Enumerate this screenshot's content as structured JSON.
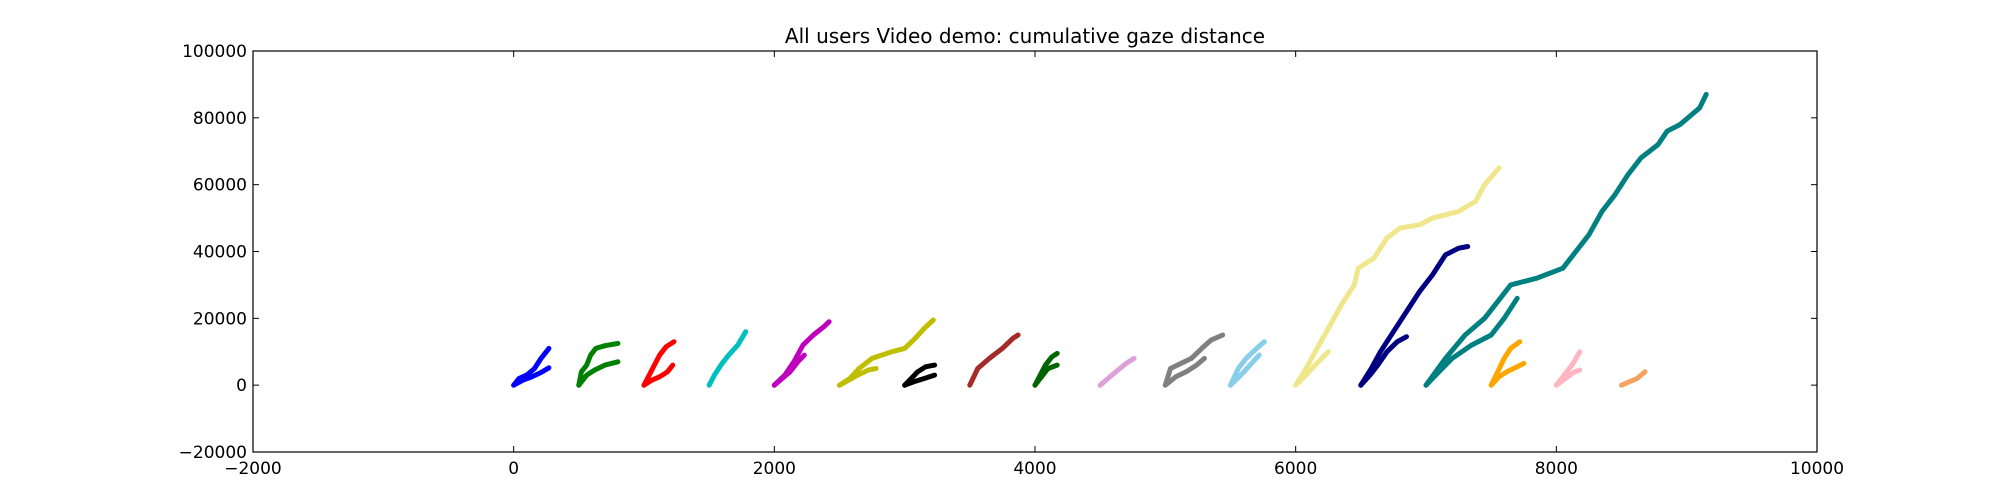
{
  "chart_data": {
    "type": "line",
    "title": "All users Video demo: cumulative gaze distance",
    "xlabel": "",
    "ylabel": "",
    "xlim": [
      -2000,
      10000
    ],
    "ylim": [
      -20000,
      100000
    ],
    "grid": false,
    "x_ticks": [
      -2000,
      0,
      2000,
      4000,
      6000,
      8000,
      10000
    ],
    "y_ticks": [
      -20000,
      0,
      20000,
      40000,
      60000,
      80000,
      100000
    ],
    "x_tick_labels": [
      "−2000",
      "0",
      "2000",
      "4000",
      "6000",
      "8000",
      "10000"
    ],
    "y_tick_labels": [
      "−20000",
      "0",
      "20000",
      "40000",
      "60000",
      "80000",
      "100000"
    ],
    "series": [
      {
        "color": "#0000ff",
        "points": [
          [
            0,
            0
          ],
          [
            40,
            2000
          ],
          [
            100,
            3000
          ],
          [
            160,
            5000
          ],
          [
            210,
            8000
          ],
          [
            270,
            11000
          ]
        ]
      },
      {
        "color": "#0000ff",
        "points": [
          [
            0,
            0
          ],
          [
            70,
            1500
          ],
          [
            140,
            2500
          ],
          [
            210,
            3800
          ],
          [
            270,
            5200
          ]
        ]
      },
      {
        "color": "#008000",
        "points": [
          [
            500,
            0
          ],
          [
            520,
            4000
          ],
          [
            560,
            6000
          ],
          [
            590,
            9000
          ],
          [
            630,
            11000
          ],
          [
            700,
            11800
          ],
          [
            800,
            12500
          ]
        ]
      },
      {
        "color": "#008000",
        "points": [
          [
            500,
            0
          ],
          [
            560,
            3000
          ],
          [
            620,
            4500
          ],
          [
            700,
            6000
          ],
          [
            800,
            7000
          ]
        ]
      },
      {
        "color": "#ff0000",
        "points": [
          [
            1000,
            0
          ],
          [
            1040,
            3000
          ],
          [
            1080,
            6000
          ],
          [
            1120,
            9000
          ],
          [
            1170,
            11500
          ],
          [
            1230,
            13000
          ]
        ]
      },
      {
        "color": "#ff0000",
        "points": [
          [
            1000,
            0
          ],
          [
            1060,
            1500
          ],
          [
            1120,
            2500
          ],
          [
            1180,
            4000
          ],
          [
            1220,
            6000
          ]
        ]
      },
      {
        "color": "#00bfbf",
        "points": [
          [
            1500,
            0
          ],
          [
            1540,
            3000
          ],
          [
            1590,
            6000
          ],
          [
            1650,
            9000
          ],
          [
            1720,
            12000
          ],
          [
            1780,
            16000
          ]
        ]
      },
      {
        "color": "#bf00bf",
        "points": [
          [
            2000,
            0
          ],
          [
            2080,
            3000
          ],
          [
            2150,
            7000
          ],
          [
            2220,
            12000
          ],
          [
            2300,
            15000
          ],
          [
            2380,
            17500
          ],
          [
            2420,
            19000
          ]
        ]
      },
      {
        "color": "#bf00bf",
        "points": [
          [
            2000,
            0
          ],
          [
            2060,
            2000
          ],
          [
            2120,
            4000
          ],
          [
            2180,
            7000
          ],
          [
            2230,
            9000
          ]
        ]
      },
      {
        "color": "#bfbf00",
        "points": [
          [
            2500,
            0
          ],
          [
            2580,
            2000
          ],
          [
            2650,
            5000
          ],
          [
            2750,
            8000
          ],
          [
            2900,
            10000
          ],
          [
            3000,
            11000
          ],
          [
            3080,
            14000
          ],
          [
            3150,
            17000
          ],
          [
            3220,
            19500
          ]
        ]
      },
      {
        "color": "#bfbf00",
        "points": [
          [
            2500,
            0
          ],
          [
            2570,
            1500
          ],
          [
            2640,
            3000
          ],
          [
            2720,
            4500
          ],
          [
            2780,
            5000
          ]
        ]
      },
      {
        "color": "#000000",
        "points": [
          [
            3000,
            0
          ],
          [
            3050,
            2000
          ],
          [
            3100,
            4000
          ],
          [
            3160,
            5500
          ],
          [
            3230,
            6000
          ]
        ]
      },
      {
        "color": "#000000",
        "points": [
          [
            3000,
            0
          ],
          [
            3070,
            1000
          ],
          [
            3150,
            2000
          ],
          [
            3230,
            3000
          ]
        ]
      },
      {
        "color": "#a52a2a",
        "points": [
          [
            3500,
            0
          ],
          [
            3560,
            5000
          ],
          [
            3650,
            8000
          ],
          [
            3750,
            11000
          ],
          [
            3830,
            14000
          ],
          [
            3870,
            15000
          ]
        ]
      },
      {
        "color": "#006400",
        "points": [
          [
            4000,
            0
          ],
          [
            4040,
            3000
          ],
          [
            4080,
            6000
          ],
          [
            4130,
            8500
          ],
          [
            4170,
            9500
          ]
        ]
      },
      {
        "color": "#006400",
        "points": [
          [
            4000,
            0
          ],
          [
            4050,
            2500
          ],
          [
            4100,
            5000
          ],
          [
            4170,
            6000
          ]
        ]
      },
      {
        "color": "#dda0dd",
        "points": [
          [
            4500,
            0
          ],
          [
            4560,
            2000
          ],
          [
            4620,
            4000
          ],
          [
            4700,
            6500
          ],
          [
            4760,
            8000
          ]
        ]
      },
      {
        "color": "#808080",
        "points": [
          [
            5000,
            0
          ],
          [
            5040,
            5000
          ],
          [
            5120,
            6500
          ],
          [
            5200,
            8000
          ],
          [
            5280,
            11000
          ],
          [
            5350,
            13500
          ],
          [
            5440,
            15000
          ]
        ]
      },
      {
        "color": "#808080",
        "points": [
          [
            5000,
            0
          ],
          [
            5080,
            2500
          ],
          [
            5160,
            4000
          ],
          [
            5240,
            6000
          ],
          [
            5300,
            8000
          ]
        ]
      },
      {
        "color": "#87ceeb",
        "points": [
          [
            5500,
            0
          ],
          [
            5560,
            5000
          ],
          [
            5620,
            8000
          ],
          [
            5700,
            11000
          ],
          [
            5760,
            13000
          ]
        ]
      },
      {
        "color": "#87ceeb",
        "points": [
          [
            5500,
            0
          ],
          [
            5580,
            3000
          ],
          [
            5650,
            6000
          ],
          [
            5720,
            9000
          ]
        ]
      },
      {
        "color": "#f0e68c",
        "points": [
          [
            6000,
            0
          ],
          [
            6080,
            5000
          ],
          [
            6150,
            10000
          ],
          [
            6250,
            17000
          ],
          [
            6350,
            24000
          ],
          [
            6450,
            30000
          ],
          [
            6480,
            35000
          ],
          [
            6600,
            38000
          ],
          [
            6700,
            44000
          ],
          [
            6800,
            47000
          ],
          [
            6950,
            48000
          ],
          [
            7050,
            50000
          ],
          [
            7250,
            52000
          ],
          [
            7380,
            55000
          ],
          [
            7450,
            60000
          ],
          [
            7560,
            65000
          ]
        ]
      },
      {
        "color": "#f0e68c",
        "points": [
          [
            6000,
            0
          ],
          [
            6080,
            3000
          ],
          [
            6150,
            6000
          ],
          [
            6250,
            10000
          ]
        ]
      },
      {
        "color": "#000080",
        "points": [
          [
            6500,
            0
          ],
          [
            6580,
            5000
          ],
          [
            6650,
            10000
          ],
          [
            6750,
            16000
          ],
          [
            6850,
            22000
          ],
          [
            6950,
            28000
          ],
          [
            7050,
            33000
          ],
          [
            7150,
            39000
          ],
          [
            7250,
            41000
          ],
          [
            7320,
            41500
          ]
        ]
      },
      {
        "color": "#000080",
        "points": [
          [
            6500,
            0
          ],
          [
            6570,
            3000
          ],
          [
            6630,
            6000
          ],
          [
            6700,
            10000
          ],
          [
            6780,
            13000
          ],
          [
            6850,
            14500
          ]
        ]
      },
      {
        "color": "#008080",
        "points": [
          [
            7000,
            0
          ],
          [
            7150,
            8000
          ],
          [
            7300,
            15000
          ],
          [
            7450,
            20000
          ],
          [
            7550,
            25000
          ],
          [
            7650,
            30000
          ],
          [
            7850,
            32000
          ],
          [
            8050,
            35000
          ],
          [
            8150,
            40000
          ],
          [
            8250,
            45000
          ],
          [
            8350,
            52000
          ],
          [
            8450,
            57000
          ],
          [
            8550,
            63000
          ],
          [
            8650,
            68000
          ],
          [
            8780,
            72000
          ],
          [
            8850,
            76000
          ],
          [
            8950,
            78000
          ],
          [
            9100,
            83000
          ],
          [
            9150,
            87000
          ]
        ]
      },
      {
        "color": "#008080",
        "points": [
          [
            7000,
            0
          ],
          [
            7100,
            4000
          ],
          [
            7200,
            8000
          ],
          [
            7350,
            12000
          ],
          [
            7500,
            15000
          ],
          [
            7600,
            20000
          ],
          [
            7700,
            26000
          ]
        ]
      },
      {
        "color": "#ffa500",
        "points": [
          [
            7500,
            0
          ],
          [
            7550,
            4000
          ],
          [
            7600,
            8000
          ],
          [
            7650,
            11000
          ],
          [
            7720,
            13000
          ]
        ]
      },
      {
        "color": "#ffa500",
        "points": [
          [
            7500,
            0
          ],
          [
            7560,
            2500
          ],
          [
            7620,
            4000
          ],
          [
            7700,
            5500
          ],
          [
            7750,
            6500
          ]
        ]
      },
      {
        "color": "#ffb6c1",
        "points": [
          [
            8000,
            0
          ],
          [
            8060,
            3000
          ],
          [
            8120,
            6000
          ],
          [
            8180,
            10000
          ]
        ]
      },
      {
        "color": "#ffb6c1",
        "points": [
          [
            8000,
            0
          ],
          [
            8070,
            2000
          ],
          [
            8140,
            4000
          ],
          [
            8180,
            4500
          ]
        ]
      },
      {
        "color": "#f4a460",
        "points": [
          [
            8500,
            0
          ],
          [
            8560,
            1000
          ],
          [
            8620,
            2000
          ],
          [
            8680,
            4000
          ]
        ]
      }
    ]
  }
}
